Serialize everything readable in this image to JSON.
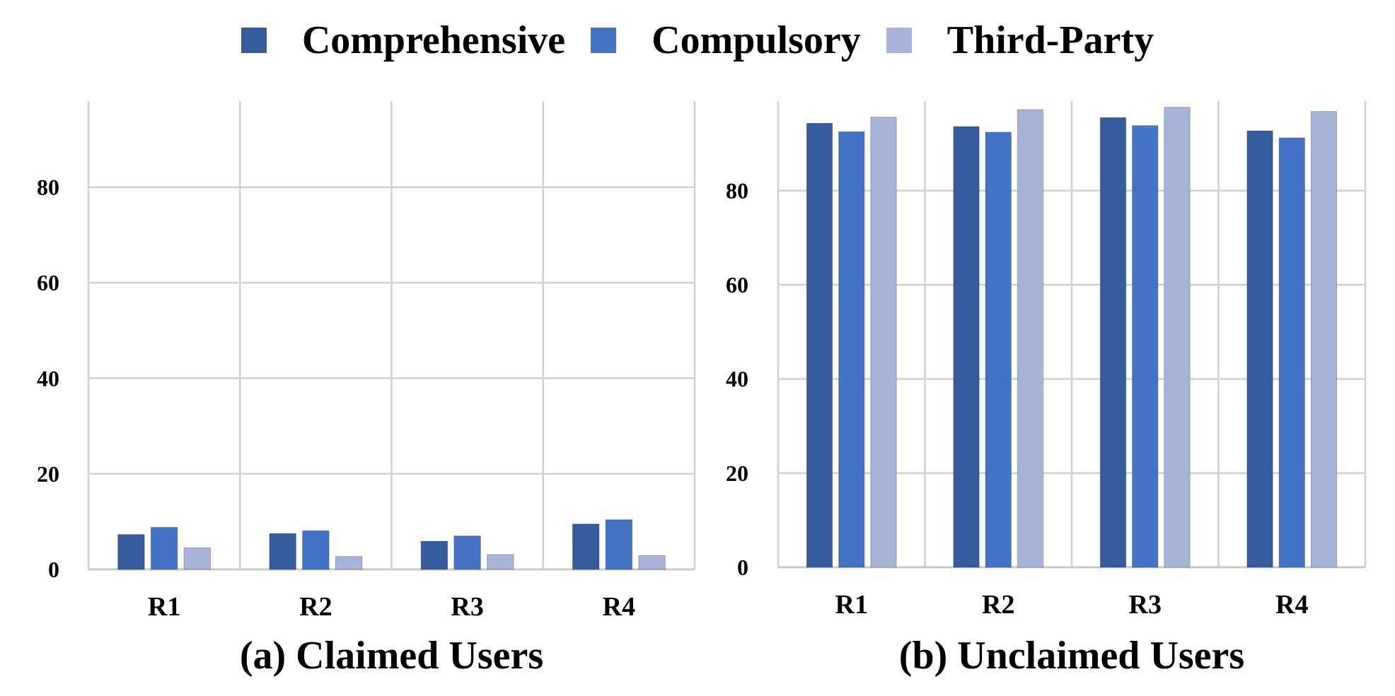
{
  "legend": [
    {
      "name": "Comprehensive",
      "color": "#365c9e"
    },
    {
      "name": "Compulsory",
      "color": "#4473c5"
    },
    {
      "name": "Third-Party",
      "color": "#a8b4da"
    }
  ],
  "chart_data": [
    {
      "type": "bar",
      "title": "(a) Claimed Users",
      "categories": [
        "R1",
        "R2",
        "R3",
        "R4"
      ],
      "ylim": [
        0,
        98
      ],
      "yticks": [
        0,
        20,
        40,
        60,
        80
      ],
      "grid": true,
      "legend_position": "top",
      "series": [
        {
          "name": "Comprehensive",
          "values": [
            7.3,
            7.5,
            5.9,
            9.5
          ]
        },
        {
          "name": "Compulsory",
          "values": [
            8.8,
            8.1,
            7.0,
            10.4
          ]
        },
        {
          "name": "Third-Party",
          "values": [
            4.5,
            2.7,
            3.1,
            2.9
          ]
        }
      ]
    },
    {
      "type": "bar",
      "title": "(b) Unclaimed Users",
      "categories": [
        "R1",
        "R2",
        "R3",
        "R4"
      ],
      "ylim": [
        0,
        99
      ],
      "yticks": [
        0,
        20,
        40,
        60,
        80
      ],
      "grid": true,
      "legend_position": "top",
      "series": [
        {
          "name": "Comprehensive",
          "values": [
            94.3,
            93.6,
            95.5,
            92.7
          ]
        },
        {
          "name": "Compulsory",
          "values": [
            92.5,
            92.4,
            93.8,
            91.2
          ]
        },
        {
          "name": "Third-Party",
          "values": [
            95.6,
            97.2,
            97.7,
            96.8
          ]
        }
      ]
    }
  ]
}
